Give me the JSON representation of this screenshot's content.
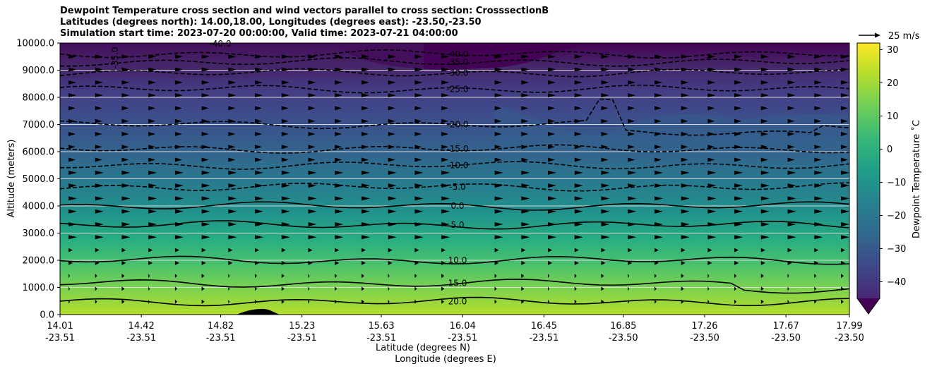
{
  "title": {
    "line1": "Dewpoint Temperature cross section and wind vectors parallel to cross section: CrosssectionB",
    "line2": "Latitudes (degrees north): 14.00,18.00, Longitudes (degrees east): -23.50,-23.50",
    "line3": "Simulation start time: 2023-07-20 00:00:00, Valid time: 2023-07-21 04:00:00"
  },
  "chart_data": {
    "type": "contour",
    "xlabel": "Latitude (degrees N)",
    "xlabel2": "Longitude (degrees E)",
    "ylabel": "Altitude (meters)",
    "ylim": [
      0,
      10000
    ],
    "yticks": [
      "0.0",
      "1000.0",
      "2000.0",
      "3000.0",
      "4000.0",
      "5000.0",
      "6000.0",
      "7000.0",
      "8000.0",
      "9000.0",
      "10000.0"
    ],
    "xticks": [
      {
        "lat": "14.01",
        "lon": "-23.51"
      },
      {
        "lat": "14.42",
        "lon": "-23.51"
      },
      {
        "lat": "14.82",
        "lon": "-23.51"
      },
      {
        "lat": "15.23",
        "lon": "-23.51"
      },
      {
        "lat": "15.63",
        "lon": "-23.51"
      },
      {
        "lat": "16.04",
        "lon": "-23.51"
      },
      {
        "lat": "16.45",
        "lon": "-23.51"
      },
      {
        "lat": "16.85",
        "lon": "-23.50"
      },
      {
        "lat": "17.26",
        "lon": "-23.50"
      },
      {
        "lat": "17.67",
        "lon": "-23.50"
      },
      {
        "lat": "17.99",
        "lon": "-23.50"
      }
    ],
    "grid": "horizontal",
    "colorbar": {
      "label": "Dewpoint Temperature $^\\circ$C",
      "label_text": "Dewpoint Temperature ˚C",
      "range": [
        -45,
        32
      ],
      "ticks": [
        "30",
        "20",
        "10",
        "0",
        "−10",
        "−20",
        "−30",
        "−40"
      ],
      "colormap": "viridis",
      "extend": "min"
    },
    "quiver_key": {
      "label": "25 m/s"
    },
    "contours": [
      {
        "level": "-40.0",
        "y": 9600
      },
      {
        "level": "-35.0",
        "y": 9300
      },
      {
        "level": "-30.0",
        "y": 8900
      },
      {
        "level": "-25.0",
        "y": 8300
      },
      {
        "level": "-20.0",
        "y": 7000
      },
      {
        "level": "-15.0",
        "y": 6100
      },
      {
        "level": "-10.0",
        "y": 5500
      },
      {
        "level": "-5.0",
        "y": 4700
      },
      {
        "level": "0.0",
        "y": 4000
      },
      {
        "level": "5.0",
        "y": 3300
      },
      {
        "level": "10.0",
        "y": 2000
      },
      {
        "level": "15.0",
        "y": 1150
      },
      {
        "level": "20.0",
        "y": 480
      }
    ],
    "extra_labels": [
      {
        "text": "-40.0"
      },
      {
        "text": "-35.0"
      }
    ],
    "colors": {
      "top": "#440154",
      "cold": "#3b528b",
      "mid": "#21918c",
      "warm": "#5ec962",
      "surface": "#b5de2b",
      "terrain": "#000000"
    }
  }
}
